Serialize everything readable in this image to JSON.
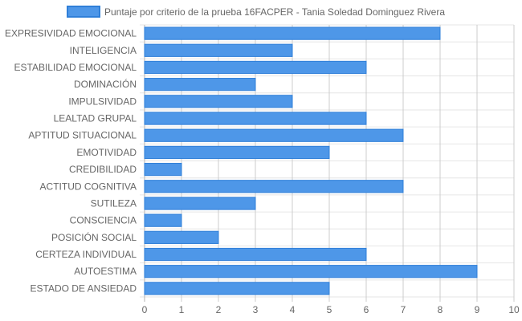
{
  "chart_data": {
    "type": "bar",
    "orientation": "horizontal",
    "categories": [
      "EXPRESIVIDAD EMOCIONAL",
      "INTELIGENCIA",
      "ESTABILIDAD EMOCIONAL",
      "DOMINACIÓN",
      "IMPULSIVIDAD",
      "LEALTAD GRUPAL",
      "APTITUD SITUACIONAL",
      "EMOTIVIDAD",
      "CREDIBILIDAD",
      "ACTITUD COGNITIVA",
      "SUTILEZA",
      "CONSCIENCIA",
      "POSICIÓN SOCIAL",
      "CERTEZA INDIVIDUAL",
      "AUTOESTIMA",
      "ESTADO DE ANSIEDAD"
    ],
    "series": [
      {
        "name": "Puntaje por criterio de la prueba 16FACPER - Tania Soledad Dominguez Rivera",
        "values": [
          8,
          4,
          6,
          3,
          4,
          6,
          7,
          5,
          1,
          7,
          3,
          1,
          2,
          6,
          9,
          5
        ],
        "color": "#4e97e8",
        "border_color": "#2f7fd8"
      }
    ],
    "xlim": [
      0,
      10
    ],
    "x_ticks": [
      "0",
      "1",
      "2",
      "3",
      "4",
      "5",
      "6",
      "7",
      "8",
      "9",
      "10"
    ],
    "grid": true,
    "legend_position": "top"
  }
}
